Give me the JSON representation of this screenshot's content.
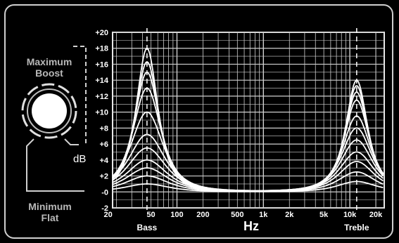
{
  "panel": {
    "max_label_line1": "Maximum",
    "max_label_line2": "Boost",
    "min_label_line1": "Minimum",
    "min_label_line2": "Flat",
    "db_unit": "dB"
  },
  "chart_data": {
    "type": "line",
    "xlabel": "Hz",
    "ylabel": "dB",
    "x_scale": "log",
    "xlim": [
      18,
      25000
    ],
    "ylim": [
      -2,
      20
    ],
    "y_ticks": [
      -2,
      0,
      2,
      4,
      6,
      8,
      10,
      12,
      14,
      16,
      18,
      20
    ],
    "y_tick_labels": [
      "-2",
      "-0",
      "+2",
      "+4",
      "+6",
      "+8",
      "+10",
      "+12",
      "+14",
      "+16",
      "+18",
      "+20"
    ],
    "x_ticks": [
      20,
      50,
      100,
      200,
      500,
      1000,
      2000,
      5000,
      10000,
      20000
    ],
    "x_tick_labels": [
      "20",
      "50",
      "100",
      "200",
      "500",
      "1k",
      "2k",
      "5k",
      "10k",
      "20k"
    ],
    "annotations": [
      {
        "text": "Bass",
        "x": 45
      },
      {
        "text": "Treble",
        "x": 12000
      }
    ],
    "grid": true,
    "legend": "none",
    "line_color": "#ffffff",
    "bass_center_hz": 45,
    "treble_center_hz": 12000,
    "series": [
      {
        "bass_peak_db": 18,
        "treble_peak_db": 14
      },
      {
        "bass_peak_db": 16.3,
        "treble_peak_db": 13.3
      },
      {
        "bass_peak_db": 15,
        "treble_peak_db": 12.5
      },
      {
        "bass_peak_db": 13,
        "treble_peak_db": 11.5
      },
      {
        "bass_peak_db": 10,
        "treble_peak_db": 9.5
      },
      {
        "bass_peak_db": 7.2,
        "treble_peak_db": 8
      },
      {
        "bass_peak_db": 5.5,
        "treble_peak_db": 6.5
      },
      {
        "bass_peak_db": 4,
        "treble_peak_db": 5
      },
      {
        "bass_peak_db": 3,
        "treble_peak_db": 3.8
      },
      {
        "bass_peak_db": 2,
        "treble_peak_db": 2.5
      },
      {
        "bass_peak_db": 1,
        "treble_peak_db": 1.3
      }
    ]
  }
}
